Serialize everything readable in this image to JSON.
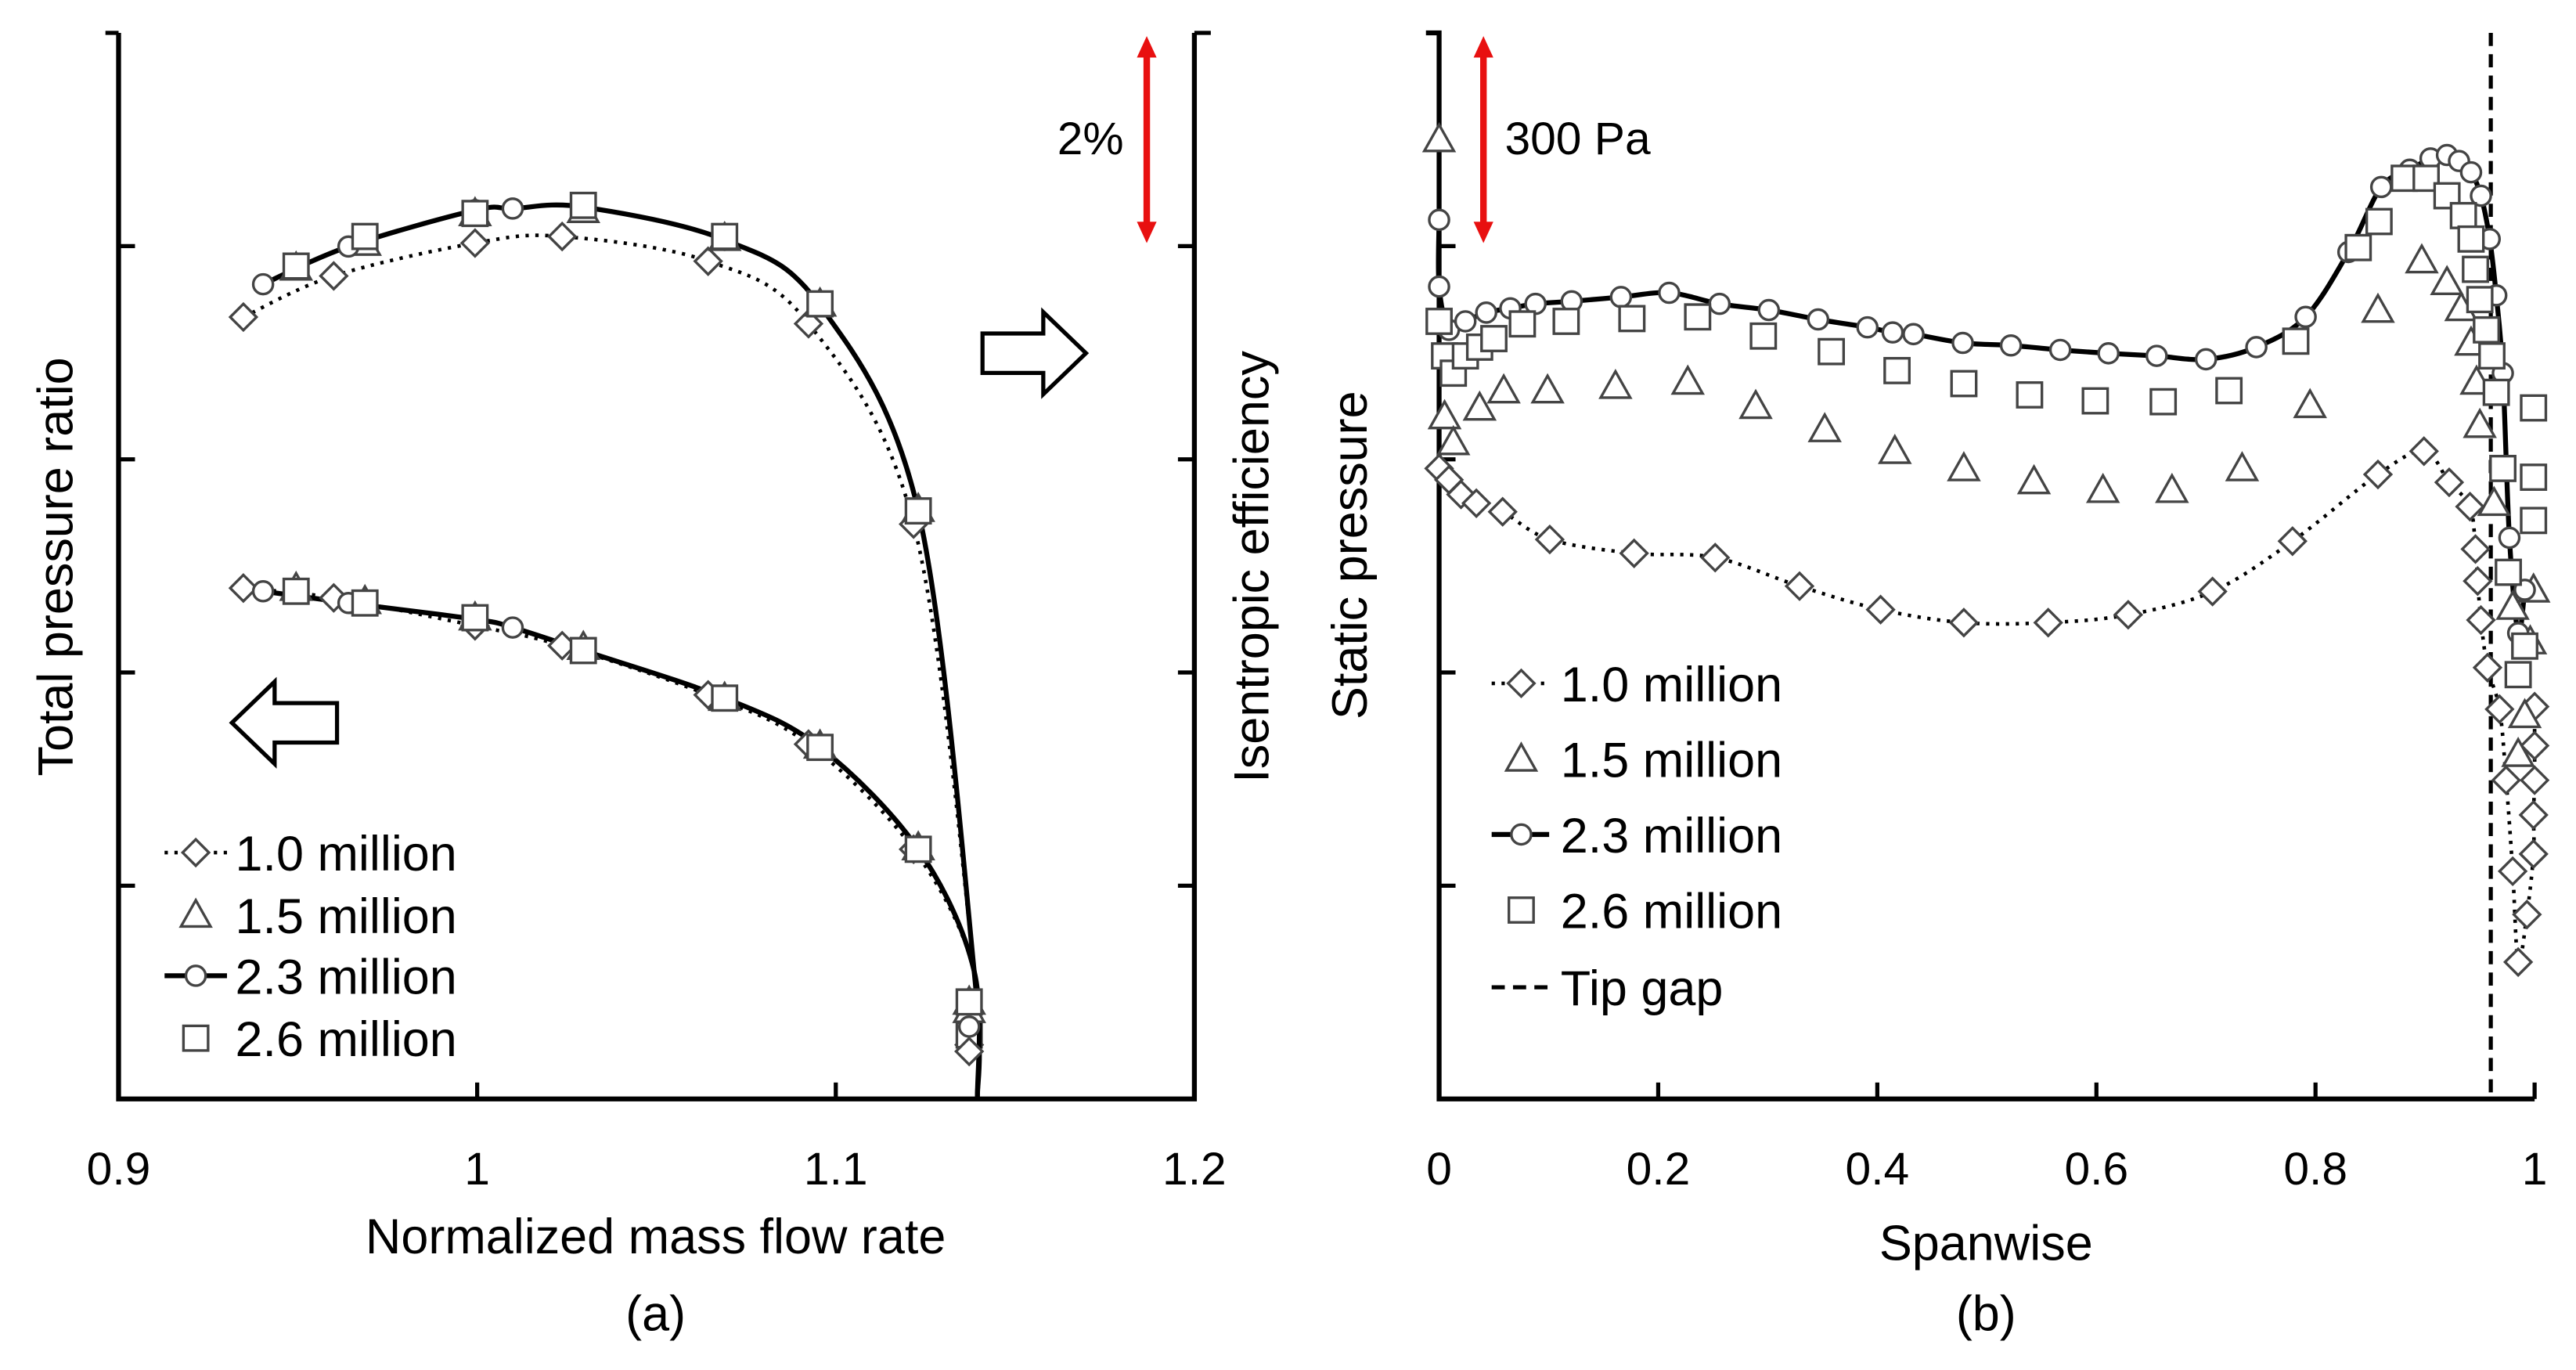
{
  "colors": {
    "annotation_arrow": "#e81010",
    "lines": "#000000",
    "markers": "#444444"
  },
  "chart_data": [
    {
      "panel": "a",
      "type": "line",
      "caption": "(a)",
      "xlabel": "Normalized mass flow rate",
      "ylabel_left": "Total pressure ratio",
      "ylabel_right": "Isentropic efficiency",
      "xlim": [
        0.9,
        1.2
      ],
      "xticks": [
        0.9,
        1.0,
        1.1,
        1.2
      ],
      "xtick_labels": [
        "0.9",
        "1",
        "1.1",
        "1.2"
      ],
      "ylim": [
        0,
        5
      ],
      "yticks": [
        1,
        2,
        3,
        4
      ],
      "y_units": "relative (unlabeled axes)",
      "scale_annotation": "2%",
      "scale_annotation_span": [
        4.0,
        4.97
      ],
      "legend": [
        "1.0 million",
        "1.5 million",
        "2.3 million",
        "2.6 million"
      ],
      "fit_end": [
        1.1395,
        0
      ],
      "efficiency_series": [
        {
          "name": "1.0 million",
          "marker": "diamond",
          "line": "dotted",
          "x": [
            0.9348,
            0.96,
            0.9994,
            1.0237,
            1.0644,
            1.0924,
            1.1217,
            1.1372
          ],
          "y": [
            3.667,
            3.86,
            4.014,
            4.045,
            3.929,
            3.636,
            2.696,
            0.254
          ]
        },
        {
          "name": "1.5 million",
          "marker": "triangle",
          "line": "none",
          "x": [
            0.9495,
            0.9687,
            0.9994,
            1.0296,
            1.069,
            1.0956,
            1.123,
            1.1372
          ],
          "y": [
            3.898,
            4.014,
            4.153,
            4.168,
            4.037,
            3.729,
            2.766,
            0.455
          ]
        },
        {
          "name": "2.3 million",
          "marker": "circle",
          "line": "solid",
          "x": [
            0.9403,
            0.9641,
            0.9994,
            1.0099,
            1.0296,
            1.069,
            1.0956,
            1.123,
            1.1372
          ],
          "y": [
            3.821,
            3.998,
            4.168,
            4.176,
            4.183,
            4.029,
            3.721,
            2.758,
            0.378
          ]
        },
        {
          "name": "2.6 million",
          "marker": "square",
          "line": "none",
          "x": [
            0.9495,
            0.9687,
            0.9994,
            1.0296,
            1.069,
            1.0956,
            1.123,
            1.1372
          ],
          "y": [
            3.906,
            4.045,
            4.153,
            4.191,
            4.045,
            3.729,
            2.758,
            0.3
          ]
        }
      ],
      "pressure_ratio_series": [
        {
          "name": "1.0 million",
          "marker": "diamond",
          "line": "dotted",
          "x": [
            0.9348,
            0.96,
            0.9994,
            1.0237,
            1.0644,
            1.0924,
            1.1217,
            1.1372
          ],
          "y": [
            2.396,
            2.35,
            2.219,
            2.126,
            1.895,
            1.664,
            1.171,
            0.223
          ]
        },
        {
          "name": "1.5 million",
          "marker": "triangle",
          "line": "none",
          "x": [
            0.9495,
            0.9687,
            0.9994,
            1.0296,
            1.069,
            1.0956,
            1.123,
            1.1372
          ],
          "y": [
            2.396,
            2.334,
            2.257,
            2.119,
            1.88,
            1.656,
            1.179,
            0.416
          ]
        },
        {
          "name": "2.3 million",
          "marker": "circle",
          "line": "solid",
          "x": [
            0.9403,
            0.9641,
            0.9994,
            1.0099,
            1.0296,
            1.069,
            1.0956,
            1.123,
            1.1372
          ],
          "y": [
            2.381,
            2.326,
            2.25,
            2.211,
            2.103,
            1.88,
            1.649,
            1.171,
            0.339
          ]
        },
        {
          "name": "2.6 million",
          "marker": "square",
          "line": "none",
          "x": [
            0.9495,
            0.9687,
            0.9994,
            1.0296,
            1.069,
            1.0956,
            1.123,
            1.1372
          ],
          "y": [
            2.381,
            2.326,
            2.257,
            2.103,
            1.88,
            1.649,
            1.171,
            0.455
          ]
        }
      ]
    },
    {
      "panel": "b",
      "type": "line",
      "caption": "(b)",
      "xlabel": "Spanwise",
      "ylabel_left": "Static pressure",
      "xlim": [
        0,
        1
      ],
      "xticks": [
        0,
        0.2,
        0.4,
        0.6,
        0.8,
        1.0
      ],
      "xtick_labels": [
        "0",
        "0.2",
        "0.4",
        "0.6",
        "0.8",
        "1"
      ],
      "ylim": [
        0,
        5
      ],
      "yticks": [
        1,
        2,
        3,
        4
      ],
      "y_units": "relative (unlabeled axis)",
      "scale_annotation": "300 Pa",
      "scale_annotation_span": [
        4.0,
        4.97
      ],
      "tip_gap_x": 0.96,
      "legend": [
        "1.0 million",
        "1.5 million",
        "2.3 million",
        "2.6 million",
        "Tip gap"
      ],
      "series": [
        {
          "name": "1.0 million",
          "marker": "diamond",
          "line": "dotted",
          "x": [
            0,
            0.009,
            0.02,
            0.034,
            0.058,
            0.101,
            0.178,
            0.252,
            0.329,
            0.403,
            0.479,
            0.556,
            0.629,
            0.706,
            0.779,
            0.857,
            0.899,
            0.922,
            0.941,
            0.946,
            0.948,
            0.951,
            0.957,
            0.968,
            0.974,
            0.98,
            0.985,
            0.993,
            0.999,
            0.999,
            1.0,
            1.0,
            1.0
          ],
          "y": [
            2.957,
            2.904,
            2.835,
            2.794,
            2.754,
            2.624,
            2.559,
            2.539,
            2.405,
            2.295,
            2.234,
            2.234,
            2.271,
            2.38,
            2.616,
            2.929,
            3.038,
            2.892,
            2.778,
            2.579,
            2.429,
            2.246,
            2.023,
            1.828,
            1.495,
            1.068,
            0.642,
            0.865,
            1.149,
            1.332,
            1.495,
            1.657,
            1.84
          ]
        },
        {
          "name": "1.5 million",
          "marker": "triangle",
          "line": "none",
          "x": [
            0,
            0.005,
            0.013,
            0.037,
            0.059,
            0.099,
            0.161,
            0.227,
            0.289,
            0.352,
            0.416,
            0.479,
            0.543,
            0.606,
            0.669,
            0.733,
            0.795,
            0.857,
            0.897,
            0.92,
            0.933,
            0.942,
            0.947,
            0.95,
            0.963,
            0.98,
            0.985,
            0.991,
            0.996,
            0.999
          ],
          "y": [
            4.5,
            3.201,
            3.079,
            3.241,
            3.322,
            3.322,
            3.343,
            3.363,
            3.249,
            3.14,
            3.038,
            2.957,
            2.896,
            2.855,
            2.855,
            2.957,
            3.253,
            3.7,
            3.932,
            3.83,
            3.708,
            3.546,
            3.363,
            3.16,
            2.794,
            2.307,
            1.617,
            1.799,
            2.145,
            2.388
          ]
        },
        {
          "name": "2.3 million",
          "marker": "circle",
          "line": "solid",
          "x": [
            0,
            0,
            0.009,
            0.024,
            0.043,
            0.065,
            0.088,
            0.121,
            0.166,
            0.21,
            0.256,
            0.301,
            0.346,
            0.391,
            0.414,
            0.433,
            0.478,
            0.522,
            0.567,
            0.611,
            0.655,
            0.7,
            0.746,
            0.791,
            0.83,
            0.86,
            0.886,
            0.905,
            0.92,
            0.931,
            0.942,
            0.951,
            0.959,
            0.965,
            0.971,
            0.977,
            0.985,
            0.991
          ],
          "y": [
            4.123,
            3.81,
            3.607,
            3.647,
            3.688,
            3.708,
            3.729,
            3.741,
            3.761,
            3.781,
            3.729,
            3.7,
            3.656,
            3.619,
            3.595,
            3.587,
            3.546,
            3.534,
            3.513,
            3.497,
            3.485,
            3.469,
            3.526,
            3.668,
            3.972,
            4.277,
            4.358,
            4.411,
            4.427,
            4.399,
            4.346,
            4.236,
            4.033,
            3.769,
            3.404,
            2.632,
            2.185,
            2.388
          ]
        },
        {
          "name": "2.6 million",
          "marker": "square",
          "line": "none",
          "x": [
            0,
            0.005,
            0.013,
            0.024,
            0.037,
            0.05,
            0.076,
            0.116,
            0.176,
            0.236,
            0.296,
            0.358,
            0.418,
            0.479,
            0.539,
            0.599,
            0.661,
            0.721,
            0.782,
            0.839,
            0.858,
            0.881,
            0.901,
            0.92,
            0.935,
            0.942,
            0.946,
            0.95,
            0.956,
            0.961,
            0.965,
            0.971,
            0.976,
            0.985,
            0.991,
            0.999,
            0.999,
            0.999
          ],
          "y": [
            3.647,
            3.485,
            3.404,
            3.485,
            3.526,
            3.566,
            3.635,
            3.647,
            3.66,
            3.668,
            3.578,
            3.505,
            3.416,
            3.355,
            3.302,
            3.274,
            3.27,
            3.322,
            3.554,
            3.993,
            4.115,
            4.318,
            4.318,
            4.236,
            4.143,
            4.033,
            3.891,
            3.749,
            3.607,
            3.485,
            3.314,
            2.957,
            2.47,
            1.99,
            2.124,
            2.713,
            2.916,
            3.241
          ]
        }
      ]
    }
  ]
}
